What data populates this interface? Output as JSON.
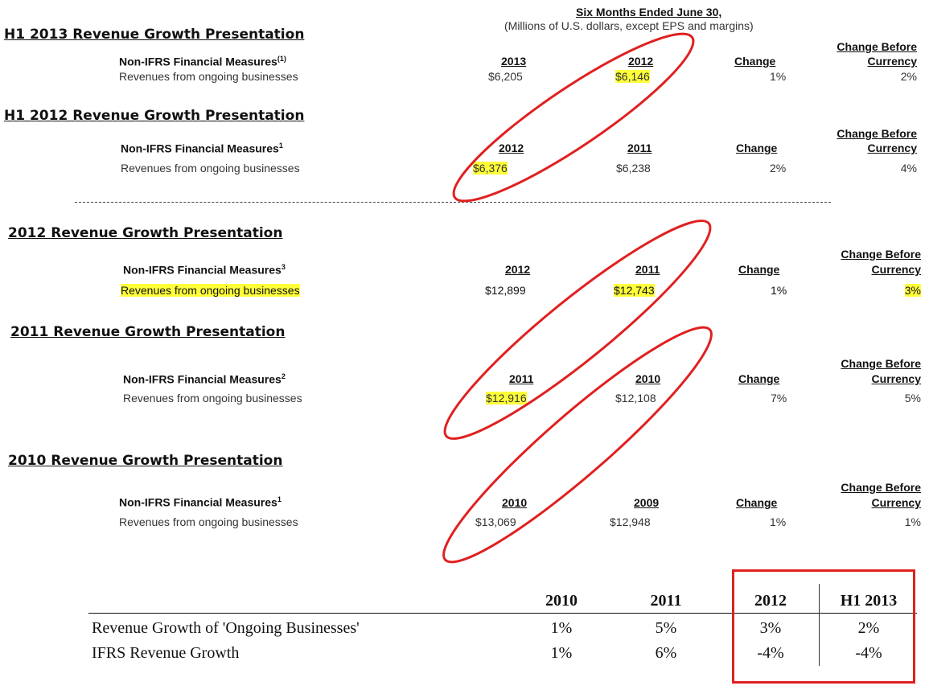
{
  "header": {
    "period": "Six Months Ended June 30,",
    "units": "(Millions of U.S. dollars, except EPS and margins)"
  },
  "sections": [
    {
      "title": "H1 2013 Revenue Growth Presentation",
      "measure": "Non-IFRS Financial Measures",
      "footnote": "(1)",
      "col1": "2013",
      "col2": "2012",
      "change": "Change",
      "cbc1": "Change Before",
      "cbc2": "Currency",
      "row_label": "Revenues from ongoing businesses",
      "v1": "$6,205",
      "v2": "$6,146",
      "v_change": "1%",
      "v_cbc": "2%"
    },
    {
      "title": "H1 2012 Revenue Growth Presentation",
      "measure": "Non-IFRS Financial Measures",
      "footnote": "1",
      "col1": "2012",
      "col2": "2011",
      "change": "Change",
      "cbc1": "Change Before",
      "cbc2": "Currency",
      "row_label": "Revenues from ongoing businesses",
      "v1": "$6,376",
      "v2": "$6,238",
      "v_change": "2%",
      "v_cbc": "4%"
    },
    {
      "title": "2012 Revenue Growth Presentation",
      "measure": "Non-IFRS Financial Measures",
      "footnote": "3",
      "col1": "2012",
      "col2": "2011",
      "change": "Change",
      "cbc1": "Change Before",
      "cbc2": "Currency",
      "row_label": "Revenues from ongoing businesses",
      "v1": "$12,899",
      "v2": "$12,743",
      "v_change": "1%",
      "v_cbc": "3%"
    },
    {
      "title": "2011 Revenue Growth Presentation",
      "measure": "Non-IFRS Financial Measures",
      "footnote": "2",
      "col1": "2011",
      "col2": "2010",
      "change": "Change",
      "cbc1": "Change Before",
      "cbc2": "Currency",
      "row_label": "Revenues from ongoing businesses",
      "v1": "$12,916",
      "v2": "$12,108",
      "v_change": "7%",
      "v_cbc": "5%"
    },
    {
      "title": "2010 Revenue Growth Presentation",
      "measure": "Non-IFRS Financial Measures",
      "footnote": "1",
      "col1": "2010",
      "col2": "2009",
      "change": "Change",
      "cbc1": "Change Before",
      "cbc2": "Currency",
      "row_label": "Revenues from ongoing businesses",
      "v1": "$13,069",
      "v2": "$12,948",
      "v_change": "1%",
      "v_cbc": "1%"
    }
  ],
  "summary": {
    "columns": [
      "2010",
      "2011",
      "2012",
      "H1 2013"
    ],
    "rows": [
      {
        "label": "Revenue Growth of 'Ongoing Businesses'",
        "values": [
          "1%",
          "5%",
          "3%",
          "2%"
        ]
      },
      {
        "label": "IFRS Revenue Growth",
        "values": [
          "1%",
          "6%",
          "-4%",
          "-4%"
        ]
      }
    ]
  },
  "colors": {
    "highlight": "#ffff3a",
    "annotation": "#e02020"
  }
}
